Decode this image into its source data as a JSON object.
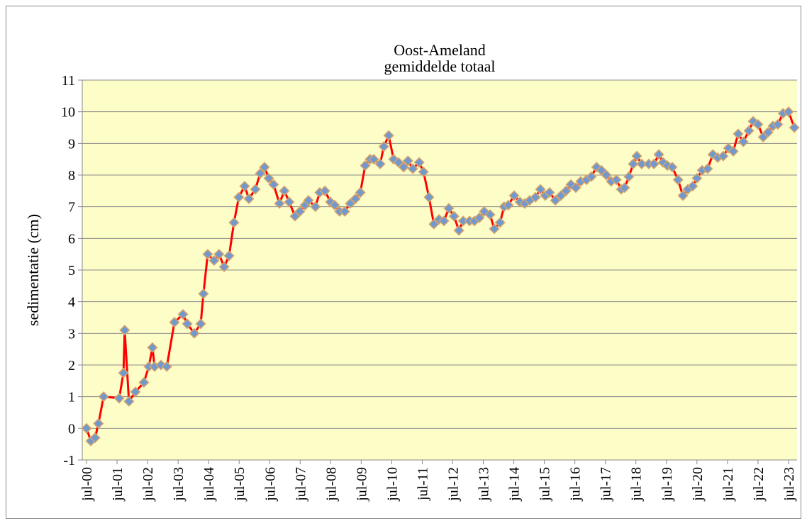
{
  "chart_data": {
    "type": "line",
    "title": "Oost-Ameland",
    "subtitle": "gemiddelde totaal",
    "y_label": "sedimentatie (cm)",
    "xlim": [
      2000.36,
      2023.78
    ],
    "xticks": [
      {
        "value": 2000.5,
        "label": "jul-00"
      },
      {
        "value": 2001.5,
        "label": "jul-01"
      },
      {
        "value": 2002.5,
        "label": "jul-02"
      },
      {
        "value": 2003.5,
        "label": "jul-03"
      },
      {
        "value": 2004.5,
        "label": "jul-04"
      },
      {
        "value": 2005.5,
        "label": "jul-05"
      },
      {
        "value": 2006.5,
        "label": "jul-06"
      },
      {
        "value": 2007.5,
        "label": "jul-07"
      },
      {
        "value": 2008.5,
        "label": "jul-08"
      },
      {
        "value": 2009.5,
        "label": "jul-09"
      },
      {
        "value": 2010.5,
        "label": "jul-10"
      },
      {
        "value": 2011.5,
        "label": "jul-11"
      },
      {
        "value": 2012.5,
        "label": "jul-12"
      },
      {
        "value": 2013.5,
        "label": "jul-13"
      },
      {
        "value": 2014.5,
        "label": "jul-14"
      },
      {
        "value": 2015.5,
        "label": "jul-15"
      },
      {
        "value": 2016.5,
        "label": "jul-16"
      },
      {
        "value": 2017.5,
        "label": "jul-17"
      },
      {
        "value": 2018.5,
        "label": "jul-18"
      },
      {
        "value": 2019.5,
        "label": "jul-19"
      },
      {
        "value": 2020.5,
        "label": "jul-20"
      },
      {
        "value": 2021.5,
        "label": "jul-21"
      },
      {
        "value": 2022.5,
        "label": "jul-22"
      },
      {
        "value": 2023.5,
        "label": "jul-23"
      }
    ],
    "ylim": [
      -1,
      11
    ],
    "yticks": [
      -1,
      0,
      1,
      2,
      3,
      4,
      5,
      6,
      7,
      8,
      9,
      10,
      11
    ],
    "grid": true,
    "x": [
      2000.5,
      2000.64,
      2000.78,
      2000.89,
      2001.06,
      2001.57,
      2001.71,
      2001.75,
      2001.89,
      2002.1,
      2002.38,
      2002.54,
      2002.66,
      2002.73,
      2002.94,
      2003.13,
      2003.38,
      2003.66,
      2003.8,
      2004.03,
      2004.24,
      2004.33,
      2004.47,
      2004.68,
      2004.84,
      2005.01,
      2005.17,
      2005.33,
      2005.49,
      2005.68,
      2005.82,
      2006.03,
      2006.19,
      2006.33,
      2006.47,
      2006.63,
      2006.82,
      2006.98,
      2007.14,
      2007.33,
      2007.49,
      2007.66,
      2007.77,
      2008.0,
      2008.14,
      2008.31,
      2008.49,
      2008.63,
      2008.79,
      2008.96,
      2009.14,
      2009.31,
      2009.47,
      2009.63,
      2009.79,
      2009.91,
      2010.12,
      2010.24,
      2010.4,
      2010.56,
      2010.72,
      2010.89,
      2011.03,
      2011.19,
      2011.4,
      2011.54,
      2011.72,
      2011.88,
      2012.05,
      2012.21,
      2012.37,
      2012.54,
      2012.7,
      2012.84,
      2013.05,
      2013.21,
      2013.37,
      2013.53,
      2013.72,
      2013.86,
      2014.05,
      2014.18,
      2014.32,
      2014.51,
      2014.7,
      2014.86,
      2015.02,
      2015.21,
      2015.37,
      2015.53,
      2015.67,
      2015.86,
      2016.04,
      2016.21,
      2016.37,
      2016.53,
      2016.69,
      2016.88,
      2017.04,
      2017.21,
      2017.37,
      2017.53,
      2017.69,
      2017.86,
      2018.02,
      2018.13,
      2018.27,
      2018.41,
      2018.53,
      2018.69,
      2018.92,
      2019.09,
      2019.25,
      2019.39,
      2019.53,
      2019.69,
      2019.88,
      2020.04,
      2020.2,
      2020.36,
      2020.5,
      2020.67,
      2020.85,
      2021.02,
      2021.18,
      2021.36,
      2021.53,
      2021.69,
      2021.85,
      2022.02,
      2022.2,
      2022.34,
      2022.5,
      2022.67,
      2022.83,
      2022.99,
      2023.15,
      2023.32,
      2023.5,
      2023.69
    ],
    "series": [
      {
        "color": "#ff0000",
        "marker_color": "#7199cf",
        "marker_edge": "#d6a36a",
        "values": [
          0.0,
          -0.4,
          -0.3,
          0.15,
          1.0,
          0.95,
          1.75,
          3.1,
          0.85,
          1.15,
          1.45,
          1.95,
          2.55,
          1.95,
          2.0,
          1.95,
          3.35,
          3.6,
          3.3,
          3.0,
          3.3,
          4.25,
          5.5,
          5.3,
          5.5,
          5.1,
          5.45,
          6.5,
          7.3,
          7.65,
          7.25,
          7.55,
          8.05,
          8.25,
          7.9,
          7.7,
          7.1,
          7.5,
          7.15,
          6.7,
          6.85,
          7.05,
          7.2,
          7.0,
          7.45,
          7.5,
          7.15,
          7.05,
          6.85,
          6.85,
          7.1,
          7.25,
          7.45,
          8.3,
          8.5,
          8.5,
          8.35,
          8.9,
          9.25,
          8.5,
          8.4,
          8.25,
          8.45,
          8.2,
          8.4,
          8.1,
          7.3,
          6.45,
          6.6,
          6.55,
          6.95,
          6.7,
          6.25,
          6.55,
          6.55,
          6.55,
          6.65,
          6.85,
          6.75,
          6.3,
          6.5,
          7.0,
          7.05,
          7.35,
          7.15,
          7.1,
          7.2,
          7.3,
          7.55,
          7.35,
          7.45,
          7.2,
          7.35,
          7.5,
          7.7,
          7.6,
          7.8,
          7.85,
          7.95,
          8.25,
          8.15,
          8.0,
          7.8,
          7.85,
          7.55,
          7.6,
          7.95,
          8.35,
          8.6,
          8.35,
          8.35,
          8.35,
          8.65,
          8.4,
          8.3,
          8.25,
          7.85,
          7.35,
          7.55,
          7.65,
          7.9,
          8.15,
          8.2,
          8.65,
          8.55,
          8.6,
          8.85,
          8.75,
          9.3,
          9.05,
          9.4,
          9.7,
          9.6,
          9.2,
          9.35,
          9.55,
          9.6,
          9.95,
          10.0,
          9.5
        ]
      }
    ]
  }
}
